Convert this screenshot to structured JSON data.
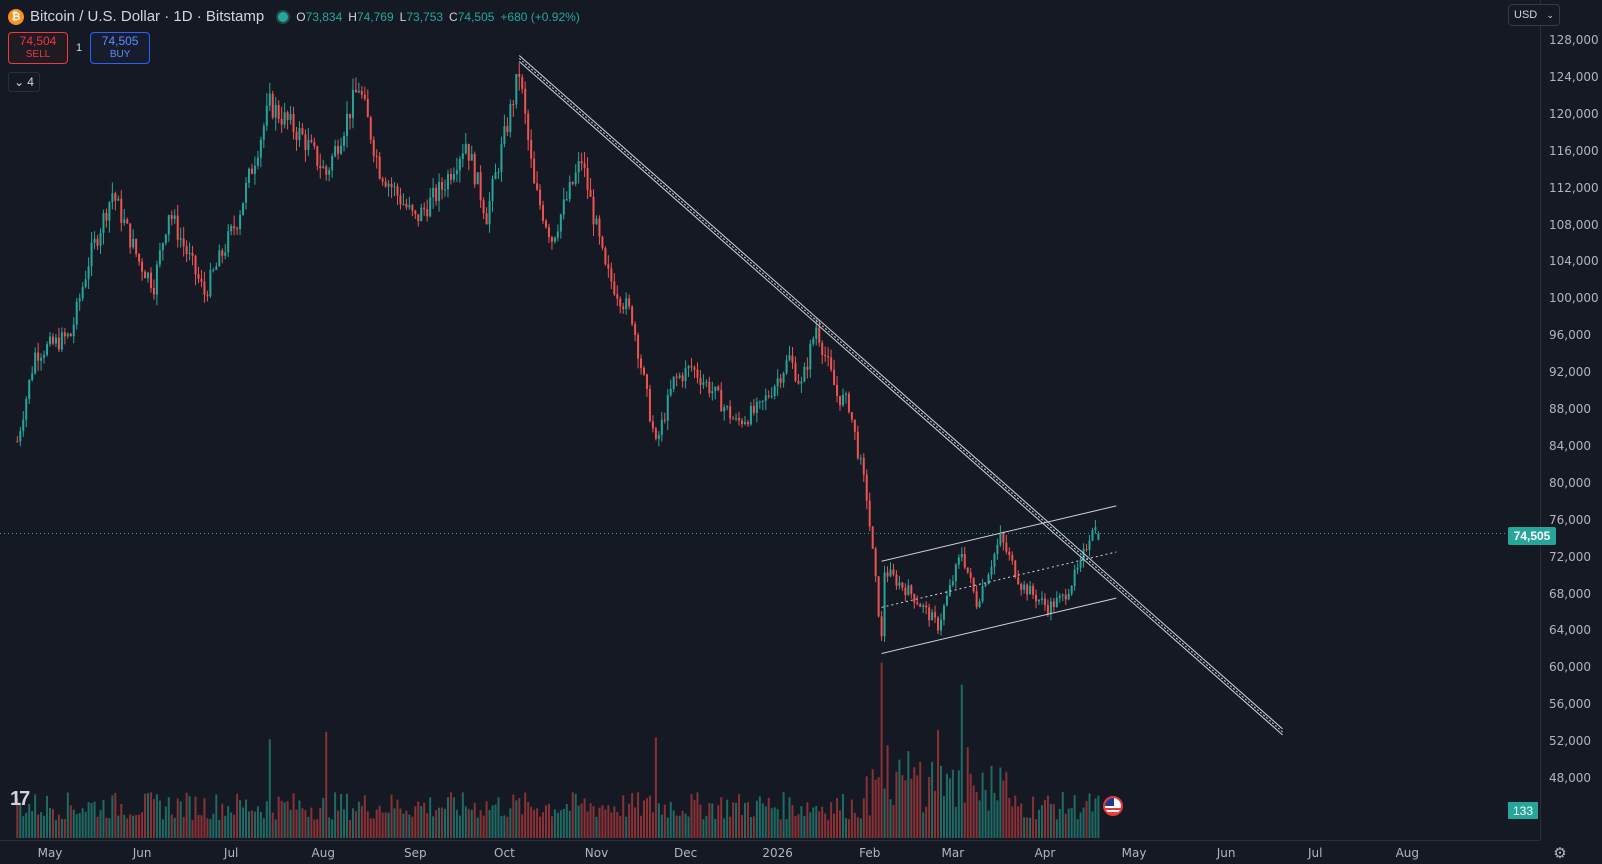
{
  "header": {
    "symbol_title": "Bitcoin / U.S. Dollar · 1D · Bitstamp",
    "symbol_icon": "bitcoin-icon",
    "ohlc": [
      {
        "key": "O",
        "value": "73,834"
      },
      {
        "key": "H",
        "value": "74,769"
      },
      {
        "key": "L",
        "value": "73,753"
      },
      {
        "key": "C",
        "value": "74,505"
      }
    ],
    "change": "+680 (+0.92%)"
  },
  "trade_panel": {
    "sell_price": "74,504",
    "sell_label": "SELL",
    "quantity": "1",
    "buy_price": "74,505",
    "buy_label": "BUY"
  },
  "indicators_toggle": "4",
  "currency_selector": "USD",
  "current_price_label": "74,505",
  "volume_label": "133",
  "colors": {
    "up": "#26a69a",
    "down": "#ef5350",
    "background": "#151924",
    "trendline": "#d1d4dc"
  },
  "chart_data": {
    "type": "candlestick",
    "title": "",
    "price_axis_ticks": [
      "128,000",
      "124,000",
      "120,000",
      "116,000",
      "112,000",
      "108,000",
      "104,000",
      "100,000",
      "96,000",
      "92,000",
      "88,000",
      "84,000",
      "80,000",
      "76,000",
      "72,000",
      "68,000",
      "64,000",
      "60,000",
      "56,000",
      "52,000",
      "48,000"
    ],
    "price_range": [
      44000,
      130000
    ],
    "time_axis_ticks": [
      "May",
      "Jun",
      "Jul",
      "Aug",
      "Sep",
      "Oct",
      "Nov",
      "Dec",
      "2026",
      "Feb",
      "Mar",
      "Apr",
      "May",
      "Jun",
      "Jul",
      "Aug"
    ],
    "current_price": 74505,
    "close_path": [
      [
        "2025-04-20",
        84500
      ],
      [
        "2025-04-26",
        94000
      ],
      [
        "2025-05-08",
        96000
      ],
      [
        "2025-05-14",
        104000
      ],
      [
        "2025-05-22",
        111500
      ],
      [
        "2025-05-31",
        104000
      ],
      [
        "2025-06-05",
        101500
      ],
      [
        "2025-06-10",
        109500
      ],
      [
        "2025-06-22",
        100500
      ],
      [
        "2025-07-03",
        108500
      ],
      [
        "2025-07-14",
        121000
      ],
      [
        "2025-07-25",
        117500
      ],
      [
        "2025-08-02",
        113500
      ],
      [
        "2025-08-13",
        123000
      ],
      [
        "2025-08-20",
        114000
      ],
      [
        "2025-09-01",
        108500
      ],
      [
        "2025-09-10",
        112000
      ],
      [
        "2025-09-18",
        117000
      ],
      [
        "2025-09-25",
        109000
      ],
      [
        "2025-10-06",
        124500
      ],
      [
        "2025-10-11",
        112000
      ],
      [
        "2025-10-17",
        106500
      ],
      [
        "2025-10-27",
        115000
      ],
      [
        "2025-11-04",
        103000
      ],
      [
        "2025-11-13",
        98000
      ],
      [
        "2025-11-21",
        84000
      ],
      [
        "2025-11-27",
        91000
      ],
      [
        "2025-12-03",
        92500
      ],
      [
        "2025-12-10",
        90000
      ],
      [
        "2025-12-18",
        86500
      ],
      [
        "2025-12-26",
        88000
      ],
      [
        "2026-01-05",
        93500
      ],
      [
        "2026-01-09",
        90500
      ],
      [
        "2026-01-14",
        97000
      ],
      [
        "2026-01-21",
        89500
      ],
      [
        "2026-01-25",
        88500
      ],
      [
        "2026-01-31",
        78500
      ],
      [
        "2026-02-05",
        63000
      ],
      [
        "2026-02-06",
        70500
      ],
      [
        "2026-02-15",
        68000
      ],
      [
        "2026-02-24",
        64500
      ],
      [
        "2026-03-04",
        72500
      ],
      [
        "2026-03-09",
        67000
      ],
      [
        "2026-03-17",
        74000
      ],
      [
        "2026-03-24",
        69000
      ],
      [
        "2026-04-02",
        66500
      ],
      [
        "2026-04-07",
        67500
      ],
      [
        "2026-04-13",
        71000
      ],
      [
        "2026-04-17",
        75500
      ],
      [
        "2026-04-19",
        74505
      ]
    ],
    "trendlines": {
      "descending": [
        [
          "2025-10-06",
          126000
        ],
        [
          "2026-06-20",
          53000
        ]
      ],
      "channel_upper": [
        [
          "2026-02-05",
          71500
        ],
        [
          "2026-04-25",
          77500
        ]
      ],
      "channel_mid": [
        [
          "2026-02-05",
          66500
        ],
        [
          "2026-04-25",
          72500
        ]
      ],
      "channel_lower": [
        [
          "2026-02-05",
          61500
        ],
        [
          "2026-04-25",
          67500
        ]
      ]
    },
    "volume_spikes": [
      [
        "2025-07-14",
        "high"
      ],
      [
        "2025-08-02",
        "high"
      ],
      [
        "2025-11-21",
        "high"
      ],
      [
        "2026-02-05",
        "very-high"
      ],
      [
        "2026-02-24",
        "high"
      ],
      [
        "2026-03-04",
        "high"
      ]
    ]
  }
}
